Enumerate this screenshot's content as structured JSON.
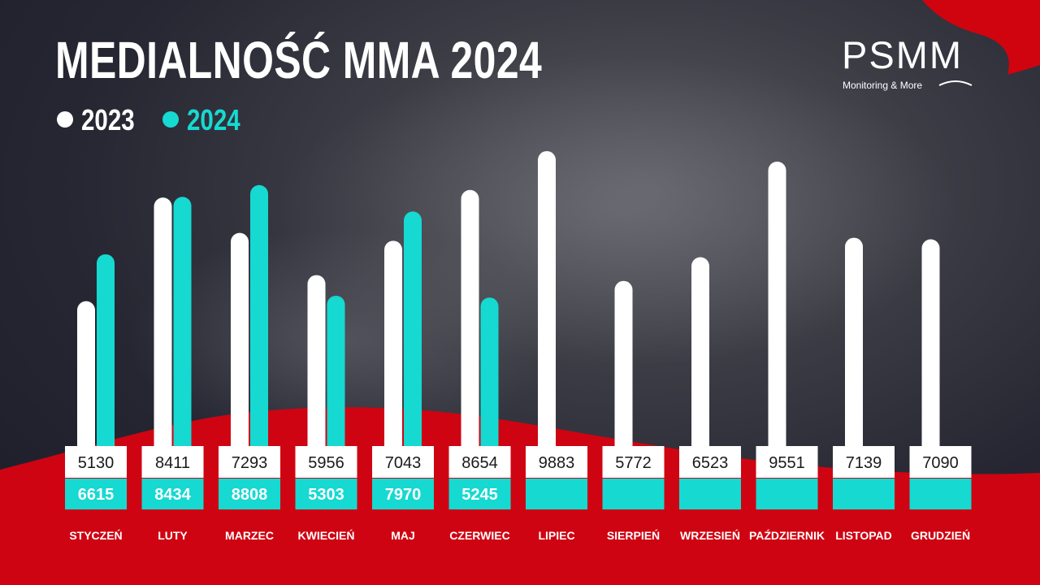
{
  "title": "MEDIALNOŚĆ MMA 2024",
  "logo": {
    "name": "PSMM",
    "tagline": "Monitoring & More"
  },
  "colors": {
    "series_2023": "#ffffff",
    "series_2024": "#16d9d1",
    "accent_red": "#d0040f",
    "background": "#2a2a35"
  },
  "chart_data": {
    "type": "bar",
    "title": "MEDIALNOŚĆ MMA 2024",
    "categories": [
      "STYCZEŃ",
      "LUTY",
      "MARZEC",
      "KWIECIEŃ",
      "MAJ",
      "CZERWIEC",
      "LIPIEC",
      "SIERPIEŃ",
      "WRZESIEŃ",
      "PAŹDZIERNIK",
      "LISTOPAD",
      "GRUDZIEŃ"
    ],
    "series": [
      {
        "name": "2023",
        "color": "#ffffff",
        "values": [
          5130,
          8411,
          7293,
          5956,
          7043,
          8654,
          9883,
          5772,
          6523,
          9551,
          7139,
          7090
        ]
      },
      {
        "name": "2024",
        "color": "#16d9d1",
        "values": [
          6615,
          8434,
          8808,
          5303,
          7970,
          5245,
          null,
          null,
          null,
          null,
          null,
          null
        ]
      }
    ],
    "ylim": [
      0,
      10500
    ],
    "legend": "top-left",
    "grid": false,
    "data_labels": true
  }
}
